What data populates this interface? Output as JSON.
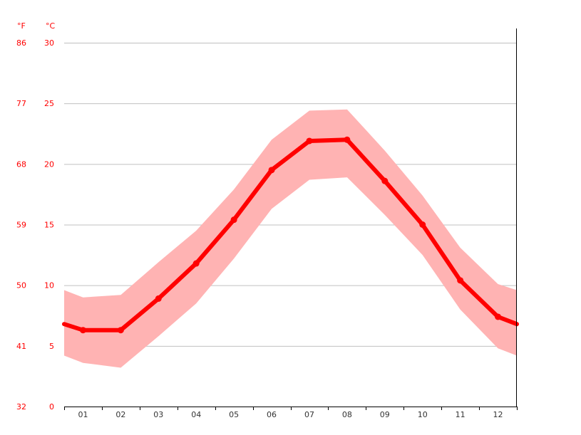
{
  "chart_data": {
    "type": "line",
    "unit_f": "°F",
    "unit_c": "°C",
    "categories": [
      "01",
      "02",
      "03",
      "04",
      "05",
      "06",
      "07",
      "08",
      "09",
      "10",
      "11",
      "12"
    ],
    "ylim": [
      0,
      30
    ],
    "yticks_c": [
      "0",
      "5",
      "10",
      "15",
      "20",
      "25",
      "30"
    ],
    "yticks_f": [
      "32",
      "41",
      "50",
      "59",
      "68",
      "77",
      "86"
    ],
    "grid": true,
    "series": [
      {
        "values": [
          6.3,
          6.3,
          8.9,
          11.8,
          15.4,
          19.5,
          21.9,
          22.0,
          18.6,
          15.0,
          10.4,
          7.4
        ],
        "color": "#ff0000"
      }
    ],
    "range_min": [
      3.6,
      3.2,
      5.8,
      8.5,
      12.2,
      16.3,
      18.7,
      18.9,
      15.8,
      12.5,
      8.0,
      4.8
    ],
    "range_max": [
      9.0,
      9.2,
      11.9,
      14.5,
      17.9,
      22.0,
      24.4,
      24.5,
      21.1,
      17.4,
      13.1,
      10.1
    ],
    "range_start": [
      4.2,
      9.6
    ],
    "range_end": [
      4.2,
      9.6
    ],
    "line_start": 6.8,
    "line_end": 6.8,
    "range_color": "#ffb3b3"
  }
}
